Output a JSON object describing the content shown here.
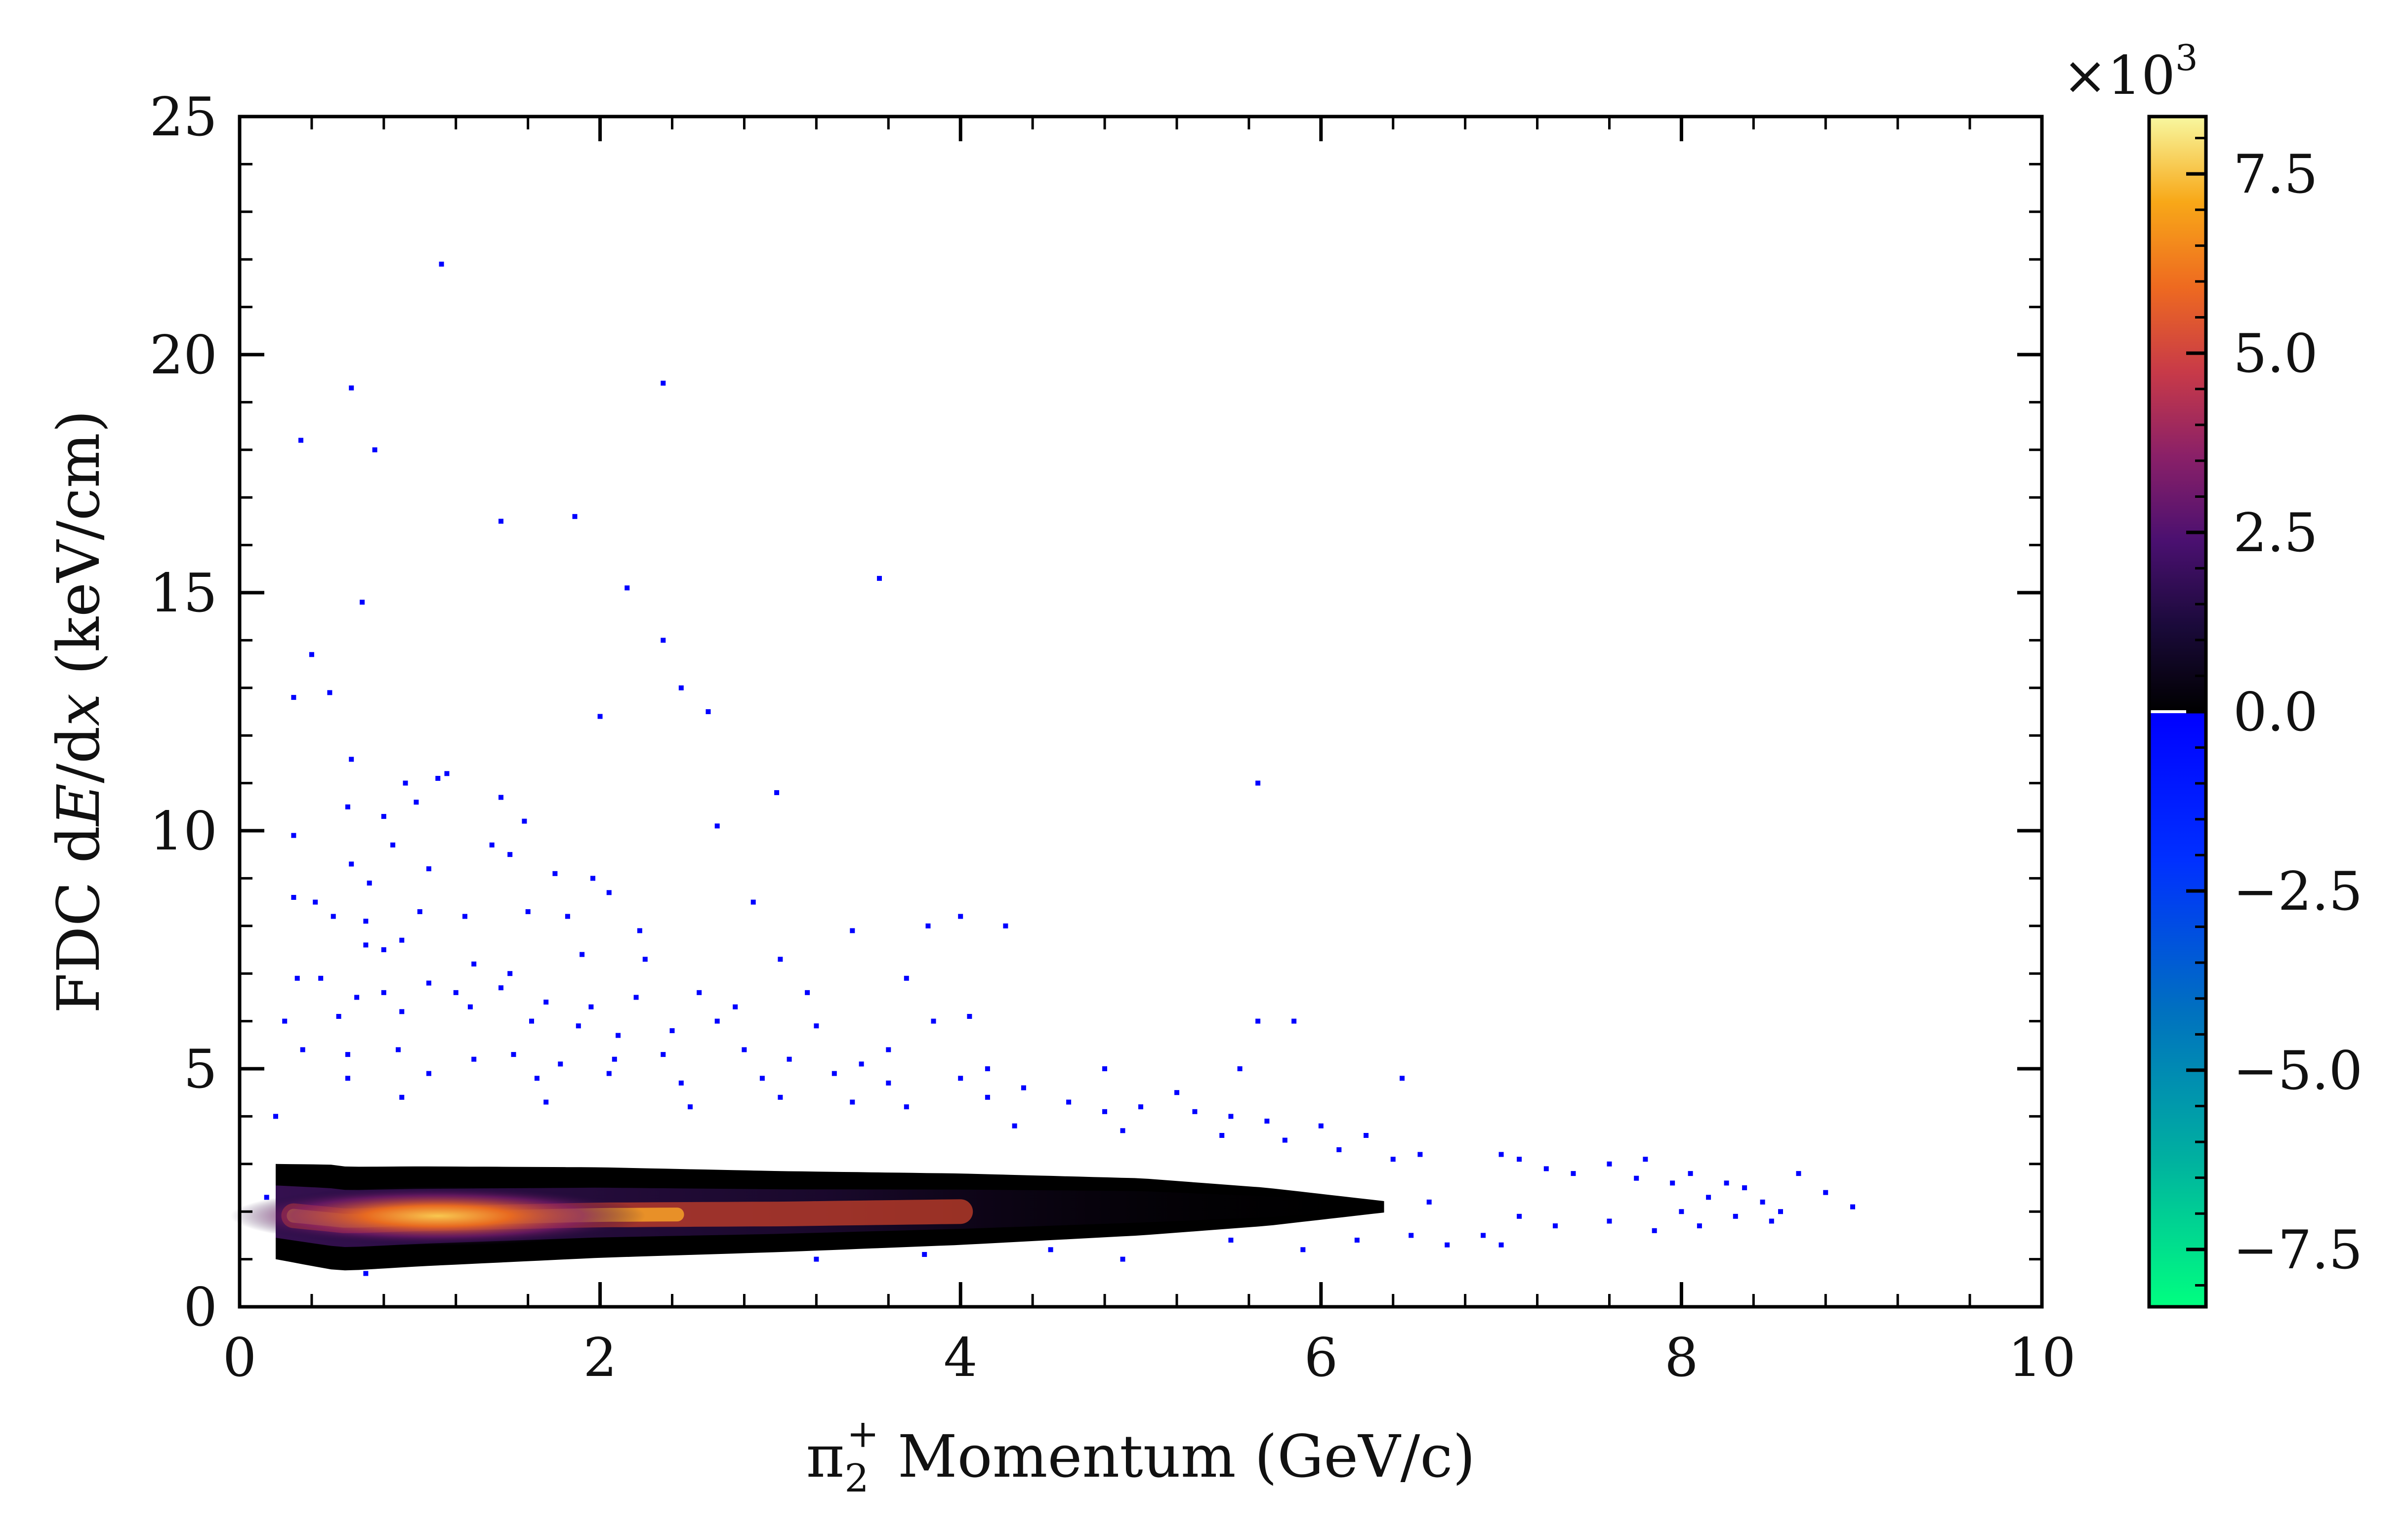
{
  "chart_data": {
    "type": "heatmap",
    "title": "",
    "xlabel_parts": {
      "pi": "π",
      "sub": "2",
      "sup": "+",
      "rest": " Momentum (GeV/c)"
    },
    "ylabel_parts": {
      "pre": "FDC d",
      "italic1": "E",
      "mid": "/d",
      "italic2": "x",
      "post": " (keV/cm)"
    },
    "xlim": [
      0,
      10
    ],
    "ylim": [
      0,
      25
    ],
    "x_ticks": [
      0,
      2,
      4,
      6,
      8,
      10
    ],
    "x_tick_labels": [
      "0",
      "2",
      "4",
      "6",
      "8",
      "10"
    ],
    "y_ticks": [
      0,
      5,
      10,
      15,
      20,
      25
    ],
    "y_tick_labels": [
      "0",
      "5",
      "10",
      "15",
      "20",
      "25"
    ],
    "colorbar": {
      "range": [
        -8.3,
        8.3
      ],
      "ticks": [
        -7.5,
        -5.0,
        -2.5,
        0.0,
        2.5,
        5.0,
        7.5
      ],
      "tick_labels": [
        "−7.5",
        "−5.0",
        "−2.5",
        "0.0",
        "2.5",
        "5.0",
        "7.5"
      ],
      "multiplier_base": "×10",
      "multiplier_exp": "3",
      "colors_negative": [
        "#00ff80",
        "#00b0a0",
        "#0070c0",
        "#0030ff",
        "#0000ff"
      ],
      "colors_positive": [
        "#000000",
        "#1a0a3a",
        "#4a1070",
        "#8a2068",
        "#c83a48",
        "#ee6a20",
        "#f8a818",
        "#f8f8a0"
      ]
    },
    "band": {
      "x_start": 0.2,
      "x_end": 6.35,
      "center": [
        [
          0.2,
          2.0
        ],
        [
          0.6,
          1.85
        ],
        [
          1.0,
          1.9
        ],
        [
          2.0,
          1.98
        ],
        [
          3.0,
          2.0
        ],
        [
          4.0,
          2.05
        ],
        [
          5.0,
          2.1
        ],
        [
          6.0,
          2.1
        ],
        [
          6.35,
          2.1
        ]
      ],
      "half_width": [
        [
          0.2,
          1.0
        ],
        [
          0.5,
          1.1
        ],
        [
          1.0,
          1.05
        ],
        [
          2.0,
          0.95
        ],
        [
          3.0,
          0.85
        ],
        [
          4.0,
          0.75
        ],
        [
          5.0,
          0.6
        ],
        [
          5.7,
          0.4
        ],
        [
          6.35,
          0.12
        ]
      ],
      "peak_x": 1.1
    },
    "outliers": [
      [
        1.12,
        21.9
      ],
      [
        0.62,
        19.3
      ],
      [
        2.35,
        19.4
      ],
      [
        0.34,
        18.2
      ],
      [
        0.75,
        18.0
      ],
      [
        1.45,
        16.5
      ],
      [
        1.86,
        16.6
      ],
      [
        0.68,
        14.8
      ],
      [
        2.15,
        15.1
      ],
      [
        3.55,
        15.3
      ],
      [
        0.4,
        13.7
      ],
      [
        2.35,
        14.0
      ],
      [
        0.5,
        12.9
      ],
      [
        2.45,
        13.0
      ],
      [
        2.6,
        12.5
      ],
      [
        2.0,
        12.4
      ],
      [
        0.3,
        12.8
      ],
      [
        0.62,
        11.5
      ],
      [
        1.1,
        11.1
      ],
      [
        1.15,
        11.2
      ],
      [
        0.92,
        11.0
      ],
      [
        0.98,
        10.6
      ],
      [
        1.45,
        10.7
      ],
      [
        2.98,
        10.8
      ],
      [
        5.65,
        11.0
      ],
      [
        0.3,
        9.9
      ],
      [
        0.6,
        10.5
      ],
      [
        0.8,
        10.3
      ],
      [
        0.85,
        9.7
      ],
      [
        1.4,
        9.7
      ],
      [
        1.58,
        10.2
      ],
      [
        1.5,
        9.5
      ],
      [
        2.65,
        10.1
      ],
      [
        0.62,
        9.3
      ],
      [
        0.72,
        8.9
      ],
      [
        1.05,
        9.2
      ],
      [
        1.75,
        9.1
      ],
      [
        1.96,
        9.0
      ],
      [
        2.05,
        8.7
      ],
      [
        2.85,
        8.5
      ],
      [
        0.3,
        8.6
      ],
      [
        0.42,
        8.5
      ],
      [
        0.52,
        8.2
      ],
      [
        0.7,
        8.1
      ],
      [
        1.0,
        8.3
      ],
      [
        1.25,
        8.2
      ],
      [
        1.6,
        8.3
      ],
      [
        1.82,
        8.2
      ],
      [
        2.22,
        7.9
      ],
      [
        3.4,
        7.9
      ],
      [
        3.82,
        8.0
      ],
      [
        4.0,
        8.2
      ],
      [
        4.25,
        8.0
      ],
      [
        0.7,
        7.6
      ],
      [
        0.8,
        7.5
      ],
      [
        0.9,
        7.7
      ],
      [
        1.3,
        7.2
      ],
      [
        1.5,
        7.0
      ],
      [
        1.9,
        7.4
      ],
      [
        2.25,
        7.3
      ],
      [
        3.0,
        7.3
      ],
      [
        0.32,
        6.9
      ],
      [
        0.45,
        6.9
      ],
      [
        0.65,
        6.5
      ],
      [
        0.8,
        6.6
      ],
      [
        1.05,
        6.8
      ],
      [
        1.2,
        6.6
      ],
      [
        1.45,
        6.7
      ],
      [
        1.7,
        6.4
      ],
      [
        1.95,
        6.3
      ],
      [
        2.2,
        6.5
      ],
      [
        2.55,
        6.6
      ],
      [
        2.75,
        6.3
      ],
      [
        3.15,
        6.6
      ],
      [
        3.7,
        6.9
      ],
      [
        0.25,
        6.0
      ],
      [
        0.55,
        6.1
      ],
      [
        0.9,
        6.2
      ],
      [
        1.28,
        6.3
      ],
      [
        1.62,
        6.0
      ],
      [
        1.88,
        5.9
      ],
      [
        2.1,
        5.7
      ],
      [
        2.4,
        5.8
      ],
      [
        2.65,
        6.0
      ],
      [
        3.2,
        5.9
      ],
      [
        3.85,
        6.0
      ],
      [
        4.05,
        6.1
      ],
      [
        5.65,
        6.0
      ],
      [
        5.85,
        6.0
      ],
      [
        0.35,
        5.4
      ],
      [
        0.6,
        5.3
      ],
      [
        0.88,
        5.4
      ],
      [
        1.3,
        5.2
      ],
      [
        1.52,
        5.3
      ],
      [
        1.78,
        5.1
      ],
      [
        2.08,
        5.2
      ],
      [
        2.35,
        5.3
      ],
      [
        2.8,
        5.4
      ],
      [
        3.05,
        5.2
      ],
      [
        3.45,
        5.1
      ],
      [
        3.6,
        5.4
      ],
      [
        4.15,
        5.0
      ],
      [
        4.8,
        5.0
      ],
      [
        5.55,
        5.0
      ],
      [
        6.45,
        4.8
      ],
      [
        0.6,
        4.8
      ],
      [
        1.05,
        4.9
      ],
      [
        1.65,
        4.8
      ],
      [
        2.05,
        4.9
      ],
      [
        2.45,
        4.7
      ],
      [
        2.9,
        4.8
      ],
      [
        3.3,
        4.9
      ],
      [
        3.6,
        4.7
      ],
      [
        4.0,
        4.8
      ],
      [
        4.35,
        4.6
      ],
      [
        5.2,
        4.5
      ],
      [
        0.2,
        4.0
      ],
      [
        0.9,
        4.4
      ],
      [
        1.7,
        4.3
      ],
      [
        2.5,
        4.2
      ],
      [
        3.0,
        4.4
      ],
      [
        3.4,
        4.3
      ],
      [
        3.7,
        4.2
      ],
      [
        4.15,
        4.4
      ],
      [
        4.6,
        4.3
      ],
      [
        4.8,
        4.1
      ],
      [
        5.0,
        4.2
      ],
      [
        5.3,
        4.1
      ],
      [
        5.5,
        4.0
      ],
      [
        5.7,
        3.9
      ],
      [
        6.0,
        3.8
      ],
      [
        6.25,
        3.6
      ],
      [
        4.3,
        3.8
      ],
      [
        4.9,
        3.7
      ],
      [
        5.45,
        3.6
      ],
      [
        5.8,
        3.5
      ],
      [
        6.1,
        3.3
      ],
      [
        6.4,
        3.1
      ],
      [
        6.55,
        3.2
      ],
      [
        7.0,
        3.2
      ],
      [
        7.1,
        3.1
      ],
      [
        7.25,
        2.9
      ],
      [
        7.4,
        2.8
      ],
      [
        7.6,
        3.0
      ],
      [
        7.75,
        2.7
      ],
      [
        7.8,
        3.1
      ],
      [
        7.95,
        2.6
      ],
      [
        8.05,
        2.8
      ],
      [
        8.15,
        2.3
      ],
      [
        8.25,
        2.6
      ],
      [
        8.35,
        2.5
      ],
      [
        8.45,
        2.2
      ],
      [
        8.55,
        2.0
      ],
      [
        8.65,
        2.8
      ],
      [
        8.8,
        2.4
      ],
      [
        8.95,
        2.1
      ],
      [
        7.1,
        1.9
      ],
      [
        7.3,
        1.7
      ],
      [
        7.6,
        1.8
      ],
      [
        7.85,
        1.6
      ],
      [
        8.0,
        2.0
      ],
      [
        8.1,
        1.7
      ],
      [
        8.3,
        1.9
      ],
      [
        8.5,
        1.8
      ],
      [
        6.5,
        1.5
      ],
      [
        6.7,
        1.3
      ],
      [
        6.9,
        1.5
      ],
      [
        5.9,
        1.2
      ],
      [
        5.5,
        1.4
      ],
      [
        4.5,
        1.2
      ],
      [
        3.8,
        1.1
      ],
      [
        3.2,
        1.0
      ],
      [
        2.7,
        1.2
      ],
      [
        0.25,
        1.4
      ],
      [
        4.9,
        1.0
      ],
      [
        0.7,
        0.7
      ],
      [
        6.2,
        1.4
      ],
      [
        7.0,
        1.3
      ],
      [
        0.15,
        2.3
      ],
      [
        6.6,
        2.2
      ]
    ]
  }
}
